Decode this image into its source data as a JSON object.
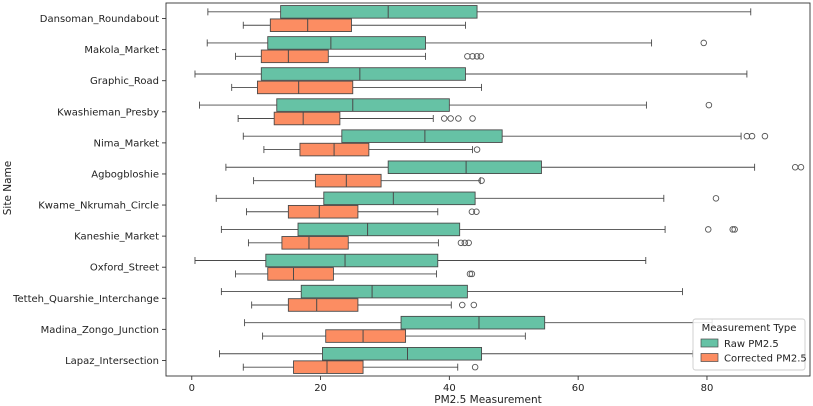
{
  "chart_data": {
    "type": "boxplot",
    "orientation": "horizontal",
    "title": "",
    "xlabel": "PM2.5 Measurement",
    "ylabel": "Site Name",
    "xlim": [
      -4,
      96
    ],
    "xticks": [
      0,
      20,
      40,
      60,
      80
    ],
    "grid": false,
    "legend": {
      "title": "Measurement Type",
      "placement": "bottom-right",
      "entries": [
        {
          "name": "Raw PM2.5",
          "color": "#66c2a5"
        },
        {
          "name": "Corrected PM2.5",
          "color": "#fc8d62"
        }
      ]
    },
    "categories": [
      "Dansoman_Roundabout",
      "Makola_Market",
      "Graphic_Road",
      "Kwashieman_Presby",
      "Nima_Market",
      "Agbogbloshie",
      "Kwame_Nkrumah_Circle",
      "Kaneshie_Market",
      "Oxford_Street",
      "Tetteh_Quarshie_Interchange",
      "Madina_Zongo_Junction",
      "Lapaz_Intersection"
    ],
    "series": [
      {
        "name": "Raw PM2.5",
        "color": "#66c2a5",
        "boxes": [
          {
            "whisker_low": 2.5,
            "q1": 13.8,
            "median": 30.5,
            "q3": 44.3,
            "whisker_high": 86.8,
            "outliers": []
          },
          {
            "whisker_low": 2.4,
            "q1": 11.8,
            "median": 21.6,
            "q3": 36.3,
            "whisker_high": 71.4,
            "outliers": [
              79.5
            ]
          },
          {
            "whisker_low": 0.5,
            "q1": 10.8,
            "median": 26.1,
            "q3": 42.5,
            "whisker_high": 86.2,
            "outliers": []
          },
          {
            "whisker_low": 1.2,
            "q1": 13.2,
            "median": 25.0,
            "q3": 40.0,
            "whisker_high": 70.6,
            "outliers": [
              80.3
            ]
          },
          {
            "whisker_low": 8.0,
            "q1": 23.3,
            "median": 36.2,
            "q3": 48.2,
            "whisker_high": 85.3,
            "outliers": [
              86.2,
              87.0,
              89.0
            ]
          },
          {
            "whisker_low": 5.3,
            "q1": 30.5,
            "median": 42.6,
            "q3": 54.3,
            "whisker_high": 87.4,
            "outliers": [
              93.7,
              94.6
            ]
          },
          {
            "whisker_low": 3.8,
            "q1": 20.5,
            "median": 31.3,
            "q3": 44.0,
            "whisker_high": 73.3,
            "outliers": [
              81.4
            ]
          },
          {
            "whisker_low": 4.6,
            "q1": 16.5,
            "median": 27.3,
            "q3": 41.6,
            "whisker_high": 73.5,
            "outliers": [
              80.2,
              84.0,
              84.3
            ]
          },
          {
            "whisker_low": 0.5,
            "q1": 11.5,
            "median": 23.8,
            "q3": 38.2,
            "whisker_high": 70.5,
            "outliers": []
          },
          {
            "whisker_low": 4.6,
            "q1": 17.0,
            "median": 28.0,
            "q3": 42.8,
            "whisker_high": 76.2,
            "outliers": []
          },
          {
            "whisker_low": 8.2,
            "q1": 32.5,
            "median": 44.6,
            "q3": 54.8,
            "whisker_high": 80.8,
            "outliers": []
          },
          {
            "whisker_low": 4.3,
            "q1": 20.3,
            "median": 33.5,
            "q3": 45.0,
            "whisker_high": 77.8,
            "outliers": []
          }
        ]
      },
      {
        "name": "Corrected PM2.5",
        "color": "#fc8d62",
        "boxes": [
          {
            "whisker_low": 8.0,
            "q1": 12.2,
            "median": 18.0,
            "q3": 24.8,
            "whisker_high": 42.5,
            "outliers": []
          },
          {
            "whisker_low": 6.8,
            "q1": 10.8,
            "median": 15.0,
            "q3": 21.2,
            "whisker_high": 36.3,
            "outliers": [
              42.8,
              43.6,
              44.3,
              44.9
            ]
          },
          {
            "whisker_low": 6.2,
            "q1": 10.2,
            "median": 16.6,
            "q3": 25.0,
            "whisker_high": 45.0,
            "outliers": []
          },
          {
            "whisker_low": 7.2,
            "q1": 12.8,
            "median": 17.3,
            "q3": 23.0,
            "whisker_high": 37.5,
            "outliers": [
              39.2,
              40.2,
              41.4,
              43.6
            ]
          },
          {
            "whisker_low": 11.2,
            "q1": 16.8,
            "median": 22.1,
            "q3": 27.5,
            "whisker_high": 43.6,
            "outliers": [
              44.3
            ]
          },
          {
            "whisker_low": 9.6,
            "q1": 19.2,
            "median": 24.0,
            "q3": 29.4,
            "whisker_high": 44.8,
            "outliers": [
              45.0
            ]
          },
          {
            "whisker_low": 8.5,
            "q1": 15.0,
            "median": 19.8,
            "q3": 25.8,
            "whisker_high": 38.2,
            "outliers": [
              43.5,
              44.2
            ]
          },
          {
            "whisker_low": 8.8,
            "q1": 14.0,
            "median": 18.2,
            "q3": 24.3,
            "whisker_high": 38.3,
            "outliers": [
              41.8,
              42.4,
              43.0
            ]
          },
          {
            "whisker_low": 6.8,
            "q1": 11.8,
            "median": 15.8,
            "q3": 22.0,
            "whisker_high": 38.0,
            "outliers": [
              43.2,
              43.5
            ]
          },
          {
            "whisker_low": 9.3,
            "q1": 15.0,
            "median": 19.4,
            "q3": 25.8,
            "whisker_high": 40.3,
            "outliers": [
              42.0,
              43.8
            ]
          },
          {
            "whisker_low": 11.0,
            "q1": 20.8,
            "median": 26.6,
            "q3": 33.2,
            "whisker_high": 51.8,
            "outliers": []
          },
          {
            "whisker_low": 8.0,
            "q1": 15.8,
            "median": 21.0,
            "q3": 26.6,
            "whisker_high": 41.3,
            "outliers": [
              44.0
            ]
          }
        ]
      }
    ]
  }
}
